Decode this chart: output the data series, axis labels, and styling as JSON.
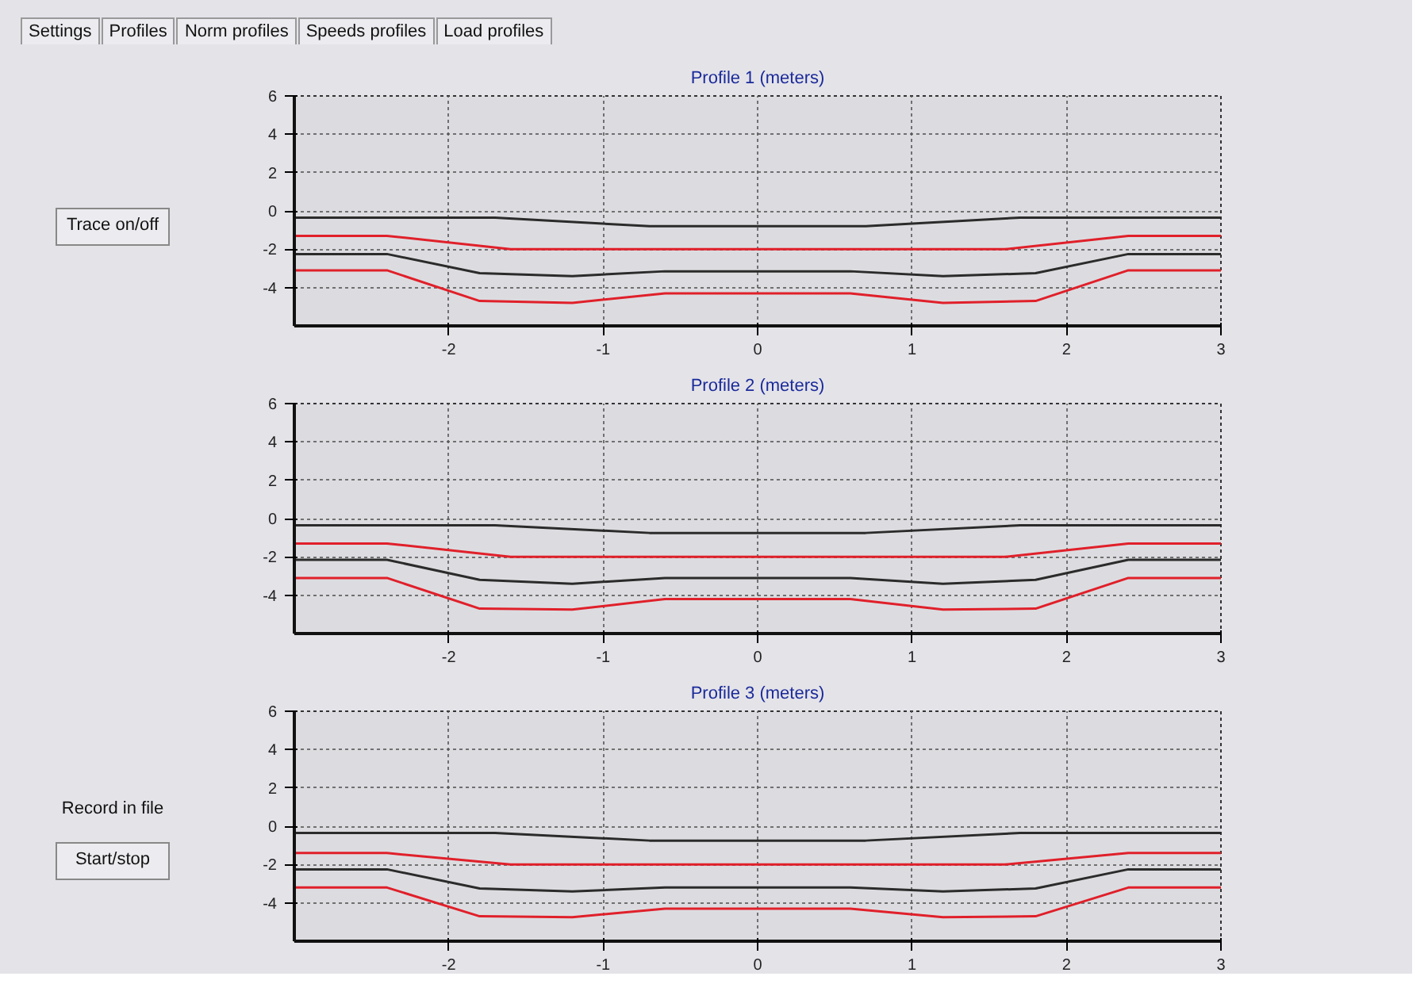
{
  "chart_data": [
    {
      "type": "line",
      "title": "Profile 1 (meters)",
      "xlim": [
        -3,
        3
      ],
      "ylim": [
        -6,
        6
      ],
      "xticks": [
        -2,
        -1,
        0,
        1,
        2,
        3
      ],
      "yticks": [
        -4,
        -2,
        0,
        2,
        4,
        6
      ],
      "grid": true,
      "line_style": "solid",
      "series": [
        {
          "color": "#2b2b2b",
          "x": [
            -3,
            -1.7,
            -0.7,
            0.7,
            1.7,
            3
          ],
          "values": [
            -0.35,
            -0.35,
            -0.8,
            -0.8,
            -0.35,
            -0.35
          ]
        },
        {
          "color": "#e0202a",
          "x": [
            -3,
            -2.4,
            -1.6,
            1.6,
            2.4,
            3
          ],
          "values": [
            -1.3,
            -1.3,
            -2.0,
            -2.0,
            -1.3,
            -1.3
          ]
        },
        {
          "color": "#2b2b2b",
          "x": [
            -3,
            -2.4,
            -1.8,
            -1.2,
            -0.6,
            0.6,
            1.2,
            1.8,
            2.4,
            3
          ],
          "values": [
            -2.25,
            -2.25,
            -3.25,
            -3.4,
            -3.15,
            -3.15,
            -3.4,
            -3.25,
            -2.25,
            -2.25
          ]
        },
        {
          "color": "#e0202a",
          "x": [
            -3,
            -2.4,
            -1.8,
            -1.2,
            -0.6,
            0.6,
            1.2,
            1.8,
            2.4,
            3
          ],
          "values": [
            -3.1,
            -3.1,
            -4.7,
            -4.8,
            -4.3,
            -4.3,
            -4.8,
            -4.7,
            -3.1,
            -3.1
          ]
        }
      ]
    },
    {
      "type": "line",
      "title": "Profile 2 (meters)",
      "xlim": [
        -3,
        3
      ],
      "ylim": [
        -6,
        6
      ],
      "xticks": [
        -2,
        -1,
        0,
        1,
        2,
        3
      ],
      "yticks": [
        -4,
        -2,
        0,
        2,
        4,
        6
      ],
      "grid": true,
      "line_style": "solid",
      "series": [
        {
          "color": "#2b2b2b",
          "x": [
            -3,
            -1.7,
            -0.7,
            0.7,
            1.7,
            3
          ],
          "values": [
            -0.35,
            -0.35,
            -0.75,
            -0.75,
            -0.35,
            -0.35
          ]
        },
        {
          "color": "#e0202a",
          "x": [
            -3,
            -2.4,
            -1.6,
            1.6,
            2.4,
            3
          ],
          "values": [
            -1.3,
            -1.3,
            -2.0,
            -2.0,
            -1.3,
            -1.3
          ]
        },
        {
          "color": "#2b2b2b",
          "x": [
            -3,
            -2.4,
            -1.8,
            -1.2,
            -0.6,
            0.6,
            1.2,
            1.8,
            2.4,
            3
          ],
          "values": [
            -2.15,
            -2.15,
            -3.2,
            -3.4,
            -3.1,
            -3.1,
            -3.4,
            -3.2,
            -2.15,
            -2.15
          ]
        },
        {
          "color": "#e0202a",
          "x": [
            -3,
            -2.4,
            -1.8,
            -1.2,
            -0.6,
            0.6,
            1.2,
            1.8,
            2.4,
            3
          ],
          "values": [
            -3.1,
            -3.1,
            -4.7,
            -4.75,
            -4.2,
            -4.2,
            -4.75,
            -4.7,
            -3.1,
            -3.1
          ]
        }
      ]
    },
    {
      "type": "line",
      "title": "Profile 3 (meters)",
      "xlim": [
        -3,
        3
      ],
      "ylim": [
        -6,
        6
      ],
      "xticks": [
        -2,
        -1,
        0,
        1,
        2,
        3
      ],
      "yticks": [
        -4,
        -2,
        0,
        2,
        4,
        6
      ],
      "grid": true,
      "line_style": "solid",
      "series": [
        {
          "color": "#2b2b2b",
          "x": [
            -3,
            -1.7,
            -0.7,
            0.7,
            1.7,
            3
          ],
          "values": [
            -0.35,
            -0.35,
            -0.75,
            -0.75,
            -0.35,
            -0.35
          ]
        },
        {
          "color": "#e0202a",
          "x": [
            -3,
            -2.4,
            -1.6,
            1.6,
            2.4,
            3
          ],
          "values": [
            -1.4,
            -1.4,
            -2.0,
            -2.0,
            -1.4,
            -1.4
          ]
        },
        {
          "color": "#2b2b2b",
          "x": [
            -3,
            -2.4,
            -1.8,
            -1.2,
            -0.6,
            0.6,
            1.2,
            1.8,
            2.4,
            3
          ],
          "values": [
            -2.25,
            -2.25,
            -3.25,
            -3.4,
            -3.2,
            -3.2,
            -3.4,
            -3.25,
            -2.25,
            -2.25
          ]
        },
        {
          "color": "#e0202a",
          "x": [
            -3,
            -2.4,
            -1.8,
            -1.2,
            -0.6,
            0.6,
            1.2,
            1.8,
            2.4,
            3
          ],
          "values": [
            -3.2,
            -3.2,
            -4.7,
            -4.75,
            -4.3,
            -4.3,
            -4.75,
            -4.7,
            -3.2,
            -3.2
          ]
        }
      ]
    },
    {
      "type": "other",
      "annotations": [
        "Settings",
        "Profiles",
        "Norm profiles",
        "Speeds profiles",
        "Load profiles",
        "Trace on/off",
        "Record in file",
        "Start/stop"
      ]
    }
  ]
}
